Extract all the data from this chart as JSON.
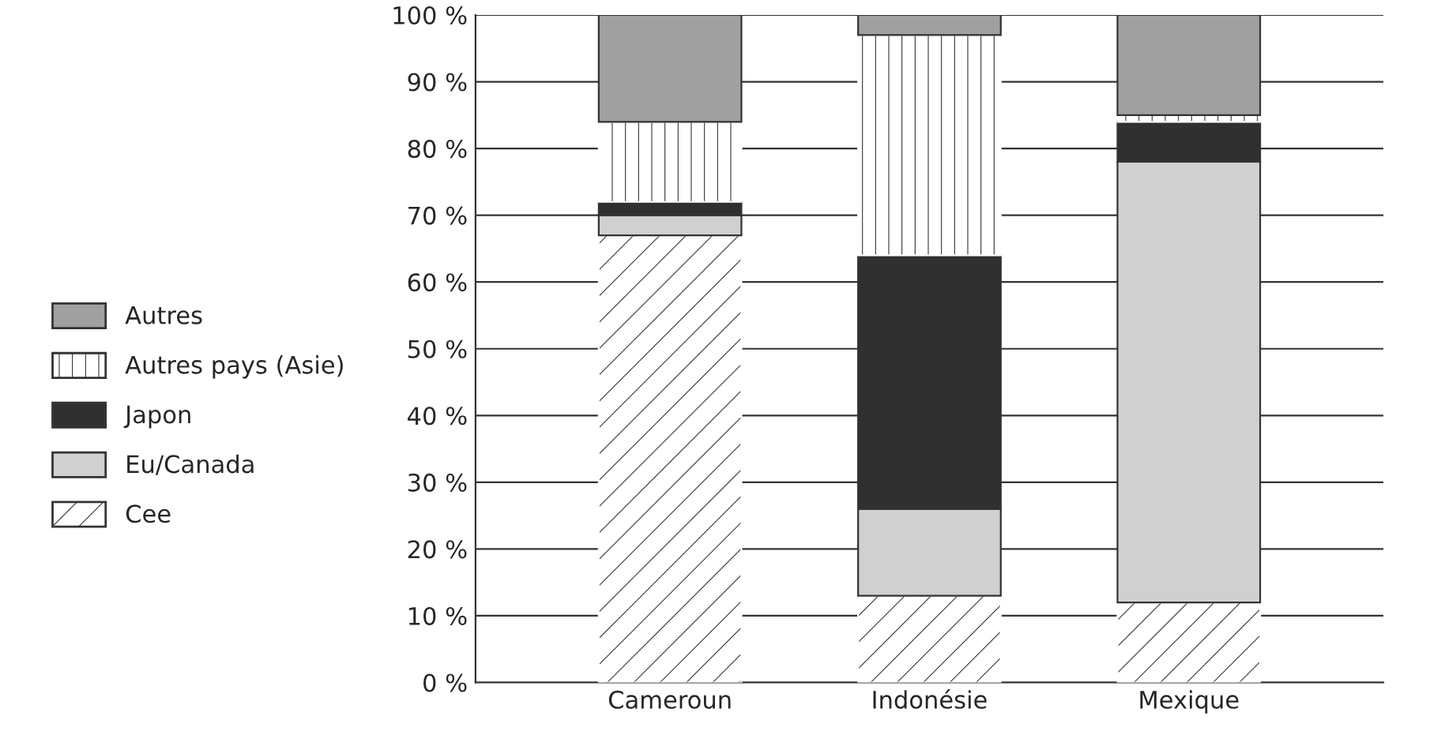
{
  "chart_data": {
    "type": "bar",
    "stacked": true,
    "categories": [
      "Cameroun",
      "Indonésie",
      "Mexique"
    ],
    "series": [
      {
        "name": "Cee",
        "color": "#ffffff",
        "values": [
          67,
          13,
          12
        ]
      },
      {
        "name": "Eu/Canada",
        "color": "#d0d0d0",
        "values": [
          3,
          13,
          66
        ]
      },
      {
        "name": "Japon",
        "color": "#303030",
        "values": [
          2,
          38,
          6
        ]
      },
      {
        "name": "Autres pays (Asie)",
        "color": "#ffffff",
        "values": [
          12,
          33,
          1
        ]
      },
      {
        "name": "Autres",
        "color": "#a0a0a0",
        "values": [
          16,
          3,
          15
        ]
      }
    ],
    "ylim": [
      0,
      100
    ],
    "yticks": [
      {
        "value": 0,
        "label": "0 %"
      },
      {
        "value": 10,
        "label": "10 %"
      },
      {
        "value": 20,
        "label": "20 %"
      },
      {
        "value": 30,
        "label": "30 %"
      },
      {
        "value": 40,
        "label": "40 %"
      },
      {
        "value": 50,
        "label": "50 %"
      },
      {
        "value": 60,
        "label": "60 %"
      },
      {
        "value": 70,
        "label": "70 %"
      },
      {
        "value": 80,
        "label": "80 %"
      },
      {
        "value": 90,
        "label": "90 %"
      },
      {
        "value": 100,
        "label": "100 %"
      }
    ],
    "grid": "y",
    "legend": "left"
  }
}
